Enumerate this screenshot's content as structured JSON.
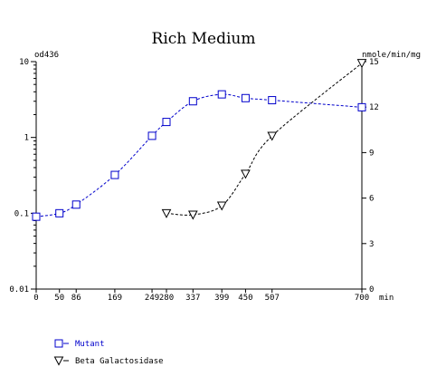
{
  "chart_data": {
    "type": "line",
    "title": "Rich Medium",
    "xlabel": "min",
    "ylabel_left": "od436",
    "ylabel_right": "nmole/min/mg",
    "xlim": [
      0,
      700
    ],
    "x_ticks": [
      0,
      50,
      86,
      169,
      249,
      280,
      337,
      399,
      450,
      507,
      700
    ],
    "y_left_scale": "log",
    "y_left_lim": [
      0.01,
      10
    ],
    "y_left_ticks": [
      {
        "v": 0.01,
        "label": "0.01"
      },
      {
        "v": 0.1,
        "label": "0.1"
      },
      {
        "v": 1,
        "label": "1"
      },
      {
        "v": 10,
        "label": "10"
      }
    ],
    "y_right_lim": [
      0,
      15
    ],
    "y_right_ticks": [
      0,
      3,
      6,
      9,
      12,
      15
    ],
    "grid": false,
    "legend_position": "bottom-left",
    "series": [
      {
        "name": "Mutant",
        "axis": "left",
        "marker": "square",
        "color": "#0000cc",
        "x": [
          0,
          50,
          86,
          169,
          249,
          280,
          337,
          399,
          450,
          507,
          700
        ],
        "y": [
          0.09,
          0.1,
          0.13,
          0.32,
          1.05,
          1.6,
          3.0,
          3.7,
          3.3,
          3.1,
          2.5
        ]
      },
      {
        "name": "Beta Galactosidase",
        "axis": "right",
        "marker": "triangle-down",
        "color": "#000000",
        "x": [
          280,
          337,
          399,
          450,
          507,
          700
        ],
        "y": [
          5.0,
          4.9,
          5.5,
          7.6,
          10.1,
          14.9
        ]
      }
    ]
  }
}
